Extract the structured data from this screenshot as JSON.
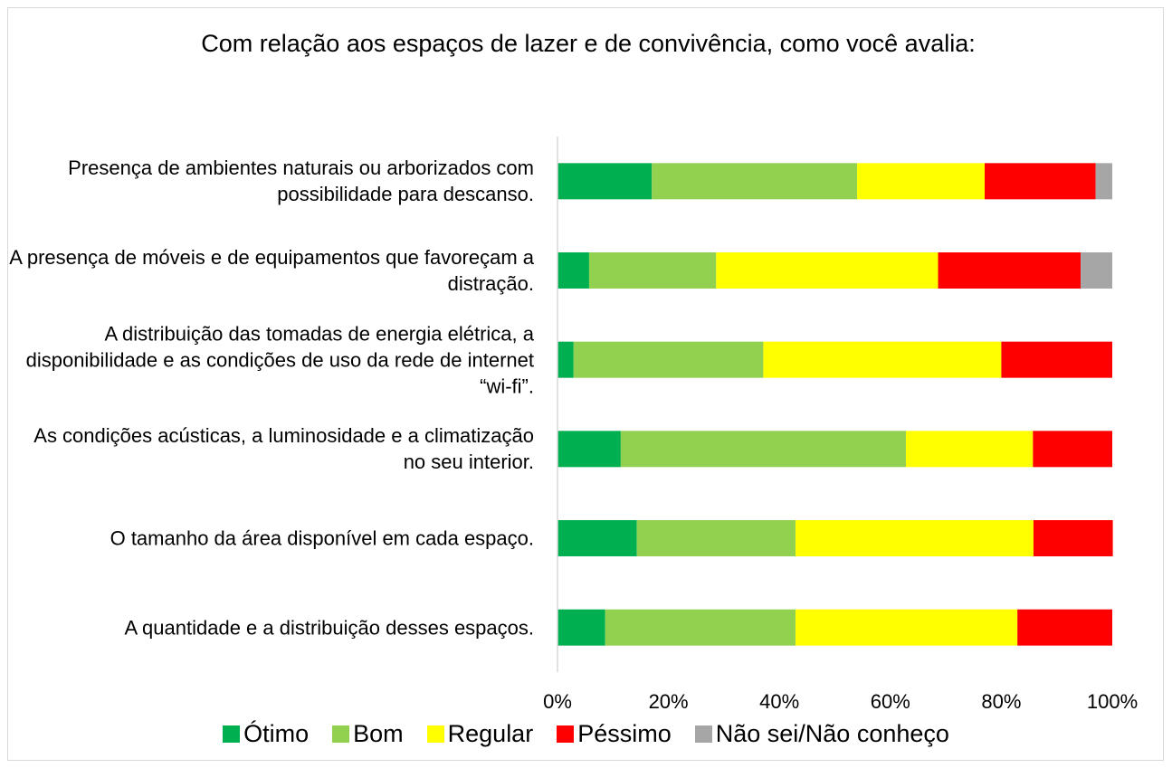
{
  "chart_data": {
    "type": "stacked_barh",
    "title": "Com relação aos espaços de lazer e de convivência, como você avalia:",
    "categories": [
      "Presença de ambientes naturais ou arborizados com possibilidade para descanso.",
      "A presença de móveis e de equipamentos que favoreçam a distração.",
      "A distribuição das tomadas de energia elétrica, a disponibilidade e as condições de uso da rede de internet “wi-fi”.",
      "As condições acústicas, a luminosidade e a climatização no seu interior.",
      "O tamanho da área disponível em cada espaço.",
      "A quantidade e a distribuição desses espaços."
    ],
    "series": [
      {
        "name": "Ótimo",
        "color": "#00b050",
        "values": [
          17,
          5.7,
          2.9,
          11.4,
          14.3,
          8.6
        ]
      },
      {
        "name": "Bom",
        "color": "#92d050",
        "values": [
          37,
          22.9,
          34.2,
          51.4,
          28.6,
          34.3
        ]
      },
      {
        "name": "Regular",
        "color": "#ffff00",
        "values": [
          23,
          40,
          42.9,
          22.9,
          42.9,
          40
        ]
      },
      {
        "name": "Péssimo",
        "color": "#ff0000",
        "values": [
          20,
          25.7,
          20,
          14.3,
          14.3,
          17.1
        ]
      },
      {
        "name": "Não sei/Não conheço",
        "color": "#a6a6a6",
        "values": [
          3,
          5.7,
          0,
          0,
          0,
          0
        ]
      }
    ],
    "xlim": [
      0,
      100
    ],
    "xticks": [
      {
        "value": 0,
        "label": "0%"
      },
      {
        "value": 20,
        "label": "20%"
      },
      {
        "value": 40,
        "label": "40%"
      },
      {
        "value": 60,
        "label": "60%"
      },
      {
        "value": 80,
        "label": "80%"
      },
      {
        "value": 100,
        "label": "100%"
      }
    ],
    "grid": false,
    "legend": "bottom"
  }
}
